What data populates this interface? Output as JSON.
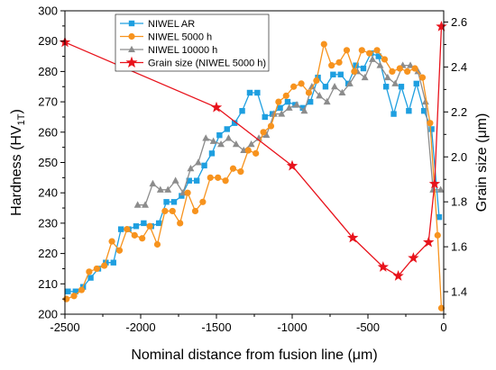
{
  "chart_data": {
    "type": "line",
    "xlabel": "Nominal distance from fusion line (μm)",
    "ylabel": "Hardness (HV",
    "ylabel_sub": "1T",
    "ylabel_close": ")",
    "y2label": "Grain size (μm)",
    "xlim": [
      -2500,
      0
    ],
    "ylim": [
      200,
      300
    ],
    "y2lim": [
      1.3,
      2.65
    ],
    "x_ticks": [
      -2500,
      -2000,
      -1500,
      -1000,
      -500,
      0
    ],
    "y_ticks": [
      200,
      210,
      220,
      230,
      240,
      250,
      260,
      270,
      280,
      290,
      300
    ],
    "y2_ticks": [
      1.4,
      1.6,
      1.8,
      2.0,
      2.2,
      2.4,
      2.6
    ],
    "x_tick_labels": [
      "-2500",
      "-2000",
      "-1500",
      "-1000",
      "-500",
      "0"
    ],
    "y_tick_labels": [
      "200",
      "210",
      "220",
      "230",
      "240",
      "250",
      "260",
      "270",
      "280",
      "290",
      "300"
    ],
    "y2_tick_labels": [
      "1.4",
      "1.6",
      "1.8",
      "2.0",
      "2.2",
      "2.4",
      "2.6"
    ],
    "legend_position": "top-left",
    "series": [
      {
        "name": "NIWEL AR",
        "axis": "left",
        "color": "#1e9fe0",
        "marker": "square",
        "x": [
          -2480,
          -2430,
          -2380,
          -2330,
          -2280,
          -2230,
          -2180,
          -2130,
          -2080,
          -2030,
          -1980,
          -1930,
          -1880,
          -1830,
          -1780,
          -1730,
          -1680,
          -1630,
          -1580,
          -1530,
          -1480,
          -1430,
          -1380,
          -1330,
          -1280,
          -1230,
          -1180,
          -1130,
          -1080,
          -1030,
          -980,
          -930,
          -880,
          -830,
          -780,
          -730,
          -680,
          -630,
          -580,
          -530,
          -480,
          -430,
          -380,
          -330,
          -280,
          -230,
          -180,
          -130,
          -80,
          -30
        ],
        "y": [
          207.5,
          207.5,
          209,
          212,
          215,
          217,
          217,
          228,
          228,
          229,
          230,
          229,
          230,
          237,
          237,
          239,
          244,
          244,
          249,
          253,
          259,
          261,
          263,
          267,
          273,
          273,
          265,
          266,
          268,
          270,
          269,
          268,
          270,
          278,
          275,
          279,
          279,
          276,
          282,
          281,
          286,
          285,
          275,
          266,
          275,
          267,
          276,
          267,
          261,
          232
        ]
      },
      {
        "name": "NIWEL 5000 h",
        "axis": "left",
        "color": "#f7931e",
        "marker": "circle",
        "x": [
          -2490,
          -2440,
          -2390,
          -2340,
          -2290,
          -2240,
          -2190,
          -2140,
          -2090,
          -2040,
          -1990,
          -1940,
          -1890,
          -1840,
          -1790,
          -1740,
          -1690,
          -1640,
          -1590,
          -1540,
          -1490,
          -1440,
          -1390,
          -1340,
          -1290,
          -1240,
          -1190,
          -1140,
          -1090,
          -1040,
          -990,
          -940,
          -890,
          -840,
          -790,
          -740,
          -690,
          -640,
          -590,
          -540,
          -490,
          -440,
          -390,
          -340,
          -290,
          -240,
          -190,
          -140,
          -90,
          -40,
          -15
        ],
        "y": [
          205,
          206,
          208,
          214,
          215,
          216,
          224,
          221,
          228,
          226,
          225,
          229,
          223,
          234,
          234,
          230,
          240,
          234,
          237,
          245,
          245,
          244,
          248,
          247,
          254,
          253,
          260,
          262,
          270,
          272,
          275,
          276,
          273,
          277,
          289,
          282,
          283,
          287,
          280,
          287,
          286,
          287,
          284,
          280,
          281,
          280,
          281,
          278,
          263,
          226,
          202
        ]
      },
      {
        "name": "NIWEL 10000 h",
        "axis": "left",
        "color": "#8c8c8c",
        "marker": "triangle",
        "x": [
          -2020,
          -1970,
          -1920,
          -1870,
          -1820,
          -1770,
          -1720,
          -1670,
          -1620,
          -1570,
          -1520,
          -1470,
          -1420,
          -1370,
          -1320,
          -1270,
          -1220,
          -1170,
          -1120,
          -1070,
          -1020,
          -970,
          -920,
          -870,
          -820,
          -770,
          -720,
          -670,
          -620,
          -570,
          -520,
          -470,
          -420,
          -370,
          -320,
          -270,
          -220,
          -170,
          -120,
          -70,
          -20
        ],
        "y": [
          236,
          236,
          243,
          241,
          241,
          244,
          240,
          248,
          250,
          258,
          257,
          256,
          258,
          256,
          254,
          256,
          258,
          259,
          266,
          266,
          268,
          269,
          267,
          275,
          272,
          270,
          275,
          273,
          276,
          280,
          278,
          284,
          282,
          278,
          276,
          282,
          282,
          280,
          270,
          241,
          241
        ]
      },
      {
        "name": "Grain size (NIWEL 5000 h)",
        "axis": "right",
        "color": "#e8131c",
        "marker": "star",
        "x": [
          -2500,
          -1500,
          -1000,
          -600,
          -400,
          -300,
          -200,
          -100,
          -60,
          -15
        ],
        "y": [
          2.51,
          2.22,
          1.96,
          1.64,
          1.51,
          1.47,
          1.55,
          1.62,
          1.88,
          2.58
        ]
      }
    ]
  }
}
